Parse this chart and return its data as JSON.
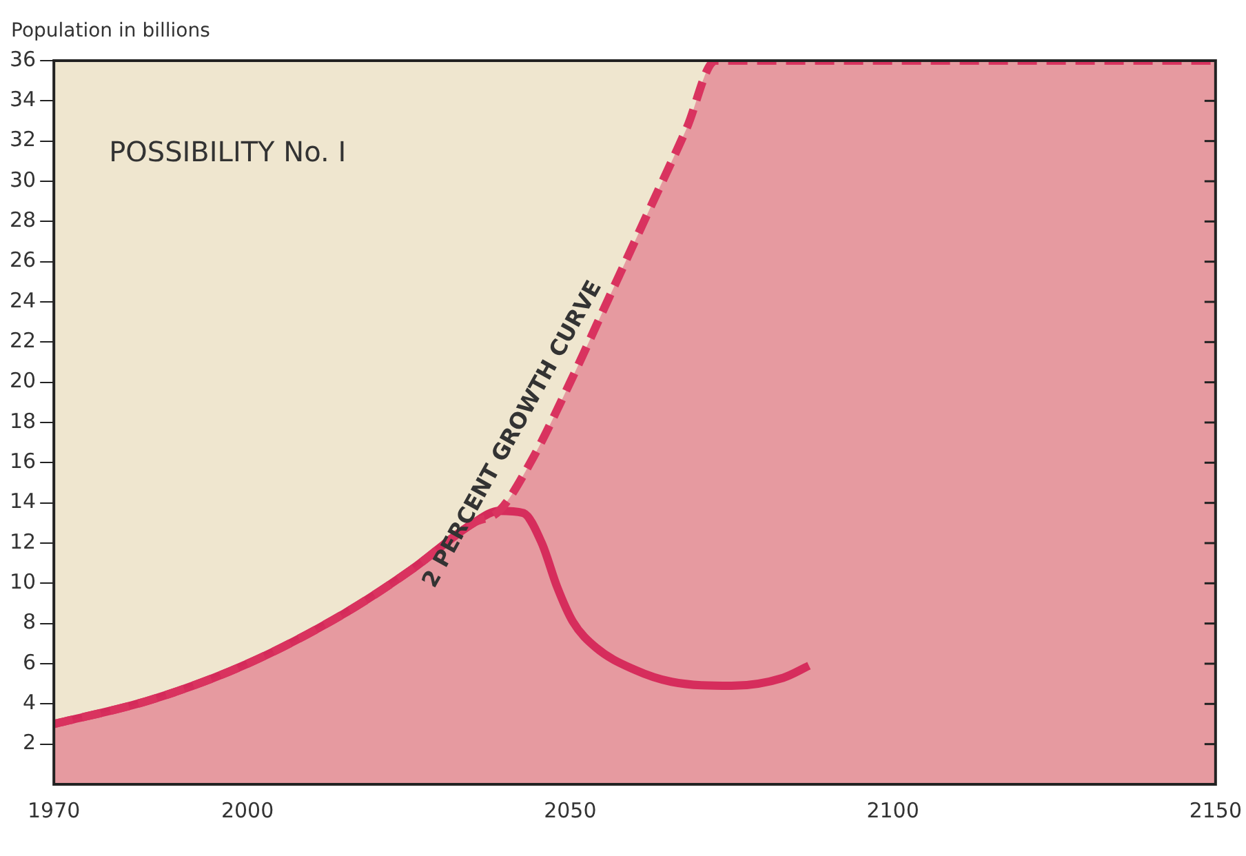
{
  "chart_data": {
    "type": "line",
    "title": "POSSIBILITY No. I",
    "ylabel": "Population in billions",
    "xlim": [
      1970,
      2150
    ],
    "xticks": [
      1970,
      2000,
      2050,
      2100,
      2150
    ],
    "ylim": [
      0,
      36
    ],
    "yticks": [
      2,
      4,
      6,
      8,
      10,
      12,
      14,
      16,
      18,
      20,
      22,
      24,
      26,
      28,
      30,
      32,
      34,
      36
    ],
    "grid": false,
    "legend": false,
    "marker": "none",
    "series": [
      {
        "name": "2 PERCENT GROWTH CURVE",
        "type": "area",
        "line_style": "dashed",
        "color": "#d9335f",
        "x": [
          1970,
          1985,
          2000,
          2015,
          2025.5,
          2035,
          2039,
          2044,
          2050,
          2056,
          2062,
          2068,
          2072.5,
          2150
        ],
        "values": [
          3.0,
          4.2,
          6.0,
          8.5,
          10.7,
          13,
          13.6,
          16.1,
          20,
          24.2,
          28.4,
          32.6,
          36,
          36
        ]
      },
      {
        "line_style": "solid",
        "color": "#d42a5a",
        "x": [
          1970,
          1985,
          2000,
          2015,
          2025.5,
          2035,
          2039,
          2042.7,
          2045.6,
          2048,
          2050.4,
          2054,
          2060,
          2065.7,
          2075,
          2083,
          2087
        ],
        "values": [
          3.0,
          4.2,
          6.0,
          8.5,
          10.7,
          13,
          13.6,
          13.5,
          12,
          9.8,
          8.1,
          6.8,
          5.7,
          5.1,
          4.9,
          5.3,
          5.9
        ]
      }
    ]
  }
}
